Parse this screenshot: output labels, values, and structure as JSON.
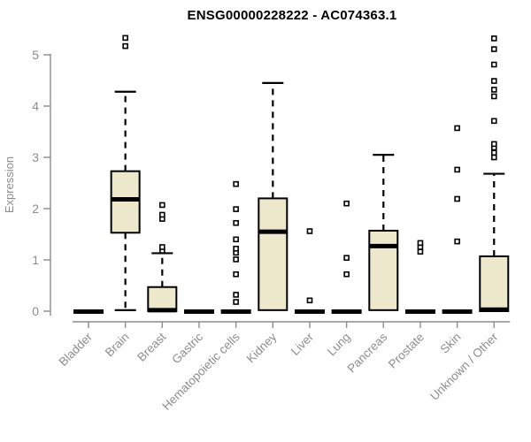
{
  "title": "ENSG00000228222 - AC074363.1",
  "chart_data": {
    "type": "boxplot",
    "title": "ENSG00000228222 - AC074363.1",
    "xlabel": "",
    "ylabel": "Expression",
    "ylim": [
      0,
      5.35
    ],
    "yticks": [
      0,
      1,
      2,
      3,
      4,
      5
    ],
    "grid": false,
    "legend": false,
    "categories": [
      "Bladder",
      "Brain",
      "Breast",
      "Gastric",
      "Hematopoietic cells",
      "Kidney",
      "Liver",
      "Lung",
      "Pancreas",
      "Prostate",
      "Skin",
      "Unknown / Other"
    ],
    "series": [
      {
        "name": "Bladder",
        "q1": 0,
        "median": 0,
        "q3": 0,
        "whisker_low": 0,
        "whisker_high": 0,
        "outliers": []
      },
      {
        "name": "Brain",
        "q1": 1.53,
        "median": 2.18,
        "q3": 2.73,
        "whisker_low": 0.02,
        "whisker_high": 4.28,
        "outliers": [
          5.17,
          5.33
        ]
      },
      {
        "name": "Breast",
        "q1": 0,
        "median": 0.02,
        "q3": 0.47,
        "whisker_low": 0,
        "whisker_high": 1.13,
        "outliers": [
          1.18,
          1.25,
          1.8,
          1.88,
          2.07
        ]
      },
      {
        "name": "Gastric",
        "q1": 0,
        "median": 0,
        "q3": 0,
        "whisker_low": 0,
        "whisker_high": 0,
        "outliers": []
      },
      {
        "name": "Hematopoietic cells",
        "q1": 0,
        "median": 0,
        "q3": 0,
        "whisker_low": 0,
        "whisker_high": 0,
        "outliers": [
          0.18,
          0.32,
          0.72,
          1.01,
          1.14,
          1.22,
          1.4,
          1.72,
          1.99,
          2.48
        ]
      },
      {
        "name": "Kidney",
        "q1": 0.02,
        "median": 1.55,
        "q3": 2.2,
        "whisker_low": 0.02,
        "whisker_high": 4.45,
        "outliers": []
      },
      {
        "name": "Liver",
        "q1": 0,
        "median": 0,
        "q3": 0,
        "whisker_low": 0,
        "whisker_high": 0,
        "outliers": [
          0.21,
          1.56
        ]
      },
      {
        "name": "Lung",
        "q1": 0,
        "median": 0,
        "q3": 0,
        "whisker_low": 0,
        "whisker_high": 0,
        "outliers": [
          0.72,
          1.04,
          2.1
        ]
      },
      {
        "name": "Pancreas",
        "q1": 0.02,
        "median": 1.27,
        "q3": 1.57,
        "whisker_low": 0.02,
        "whisker_high": 3.05,
        "outliers": []
      },
      {
        "name": "Prostate",
        "q1": 0,
        "median": 0,
        "q3": 0,
        "whisker_low": 0,
        "whisker_high": 0,
        "outliers": [
          1.16,
          1.25,
          1.33
        ]
      },
      {
        "name": "Skin",
        "q1": 0,
        "median": 0,
        "q3": 0,
        "whisker_low": 0,
        "whisker_high": 0,
        "outliers": [
          1.36,
          2.19,
          2.76,
          3.57
        ]
      },
      {
        "name": "Unknown / Other",
        "q1": 0,
        "median": 0.03,
        "q3": 1.07,
        "whisker_low": 0,
        "whisker_high": 2.68,
        "outliers": [
          3.0,
          3.09,
          3.19,
          3.26,
          3.71,
          4.19,
          4.32,
          4.49,
          4.81,
          5.11,
          5.32
        ]
      }
    ],
    "colors": {
      "box_fill": "#EDE7CB",
      "box_stroke": "#000000",
      "median": "#000000",
      "whisker": "#000000",
      "outlier_stroke": "#000000",
      "axis": "#8C8C8C",
      "tick_label": "#8C8C8C",
      "axis_label": "#8C8C8C",
      "title": "#000000",
      "background": "#FFFFFF"
    }
  }
}
